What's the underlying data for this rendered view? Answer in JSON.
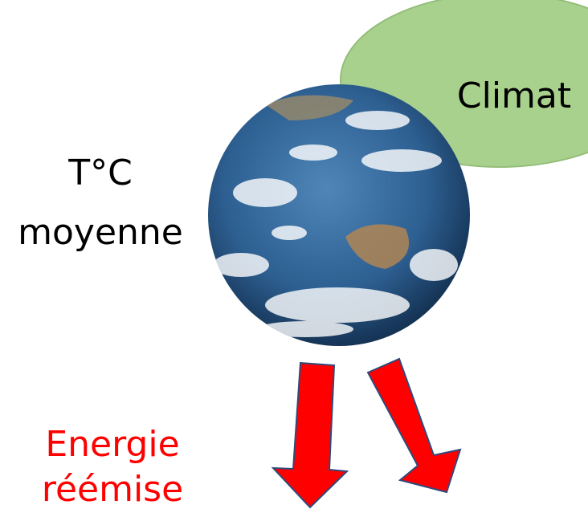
{
  "climate": "Climat",
  "temperature": [
    "T°C",
    "moyenne"
  ],
  "energy": [
    "Energie",
    "réémise"
  ]
}
